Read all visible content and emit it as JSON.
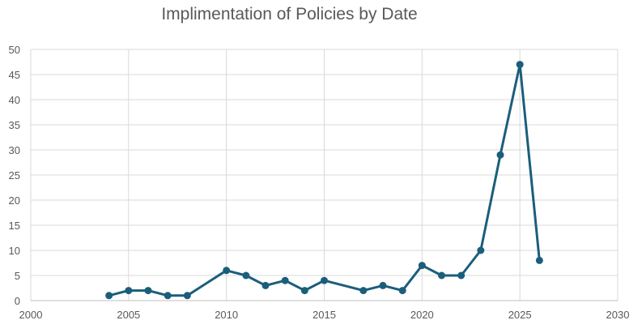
{
  "chart_data": {
    "type": "scatter",
    "title": "Implimentation of Policies by Date",
    "xlabel": "",
    "ylabel": "",
    "xlim": [
      2000,
      2030
    ],
    "ylim": [
      0,
      50
    ],
    "xticks": [
      2000,
      2005,
      2010,
      2015,
      2020,
      2025,
      2030
    ],
    "yticks": [
      0,
      5,
      10,
      15,
      20,
      25,
      30,
      35,
      40,
      45,
      50
    ],
    "grid": true,
    "legend": "none",
    "series": [
      {
        "color": "#1b5e7b",
        "x": [
          2004,
          2005,
          2006,
          2007,
          2008,
          2010,
          2011,
          2012,
          2013,
          2014,
          2015,
          2017,
          2018,
          2019,
          2020,
          2021,
          2022,
          2023,
          2024,
          2025,
          2026
        ],
        "y": [
          1,
          2,
          2,
          1,
          1,
          6,
          5,
          3,
          4,
          2,
          4,
          2,
          3,
          2,
          7,
          5,
          5,
          10,
          29,
          47,
          8
        ]
      }
    ]
  }
}
